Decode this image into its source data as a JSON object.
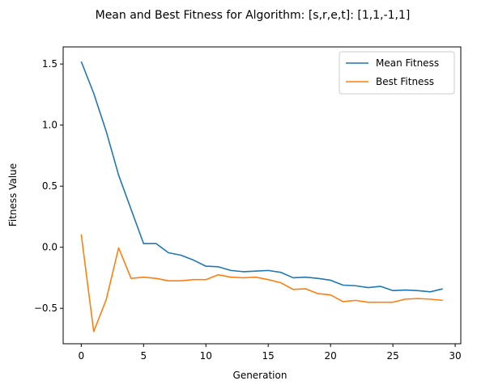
{
  "chart_data": {
    "type": "line",
    "title": "Mean and Best Fitness for Algorithm: [s,r,e,t]: [1,1,-1,1]",
    "xlabel": "Generation",
    "ylabel": "Fitness Value",
    "xlim": [
      -1.45,
      30.45
    ],
    "ylim": [
      -0.79,
      1.64
    ],
    "xticks": [
      0,
      5,
      10,
      15,
      20,
      25,
      30
    ],
    "yticks": [
      -0.5,
      0.0,
      0.5,
      1.0,
      1.5
    ],
    "ytick_labels": [
      "−0.5",
      "0.0",
      "0.5",
      "1.0",
      "1.5"
    ],
    "grid": false,
    "legend_position": "top-right",
    "x": [
      0,
      1,
      2,
      3,
      4,
      5,
      6,
      7,
      8,
      9,
      10,
      11,
      12,
      13,
      14,
      15,
      16,
      17,
      18,
      19,
      20,
      21,
      22,
      23,
      24,
      25,
      26,
      27,
      28,
      29
    ],
    "series": [
      {
        "name": "Mean Fitness",
        "color": "#1f77b4",
        "values": [
          1.52,
          1.26,
          0.95,
          0.59,
          0.31,
          0.03,
          0.03,
          -0.045,
          -0.065,
          -0.105,
          -0.155,
          -0.16,
          -0.19,
          -0.2,
          -0.195,
          -0.19,
          -0.205,
          -0.25,
          -0.245,
          -0.255,
          -0.27,
          -0.31,
          -0.315,
          -0.33,
          -0.32,
          -0.355,
          -0.35,
          -0.355,
          -0.365,
          -0.34
        ]
      },
      {
        "name": "Best Fitness",
        "color": "#ff7f0e",
        "values": [
          0.105,
          -0.69,
          -0.43,
          -0.005,
          -0.255,
          -0.245,
          -0.255,
          -0.275,
          -0.275,
          -0.265,
          -0.265,
          -0.225,
          -0.245,
          -0.25,
          -0.245,
          -0.265,
          -0.29,
          -0.345,
          -0.34,
          -0.38,
          -0.39,
          -0.445,
          -0.435,
          -0.45,
          -0.45,
          -0.45,
          -0.425,
          -0.42,
          -0.425,
          -0.435
        ]
      }
    ]
  }
}
